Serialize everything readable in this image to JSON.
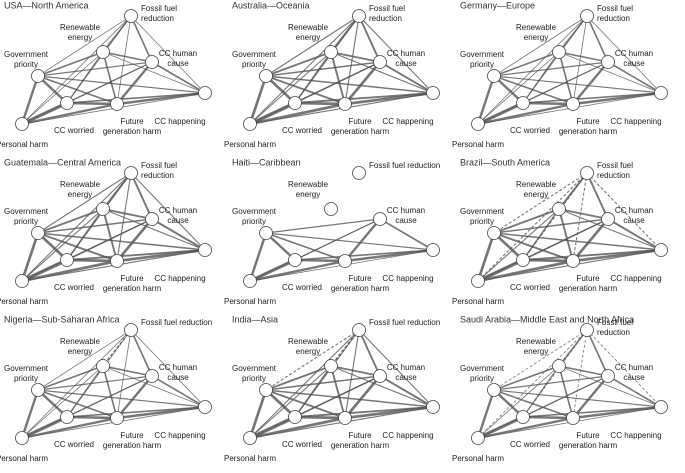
{
  "panels": [
    {
      "title": "USA—North America",
      "labels": [
        [
          "Fossil fuel",
          "reduction"
        ],
        [
          "Renewable",
          "energy"
        ],
        [
          "Government",
          "priority"
        ],
        [
          "CC human",
          "cause"
        ],
        [
          "CC worried"
        ],
        [
          "Future",
          "generation harm"
        ],
        [
          "CC happening"
        ],
        [
          "Personal harm"
        ]
      ]
    },
    {
      "title": "Australia—Oceania",
      "labels": [
        [
          "Fossil fuel",
          "reduction"
        ],
        [
          "Renewable",
          "energy"
        ],
        [
          "Government",
          "priority"
        ],
        [
          "CC human",
          "cause"
        ],
        [
          "CC worried"
        ],
        [
          "Future",
          "generation harm"
        ],
        [
          "CC happening"
        ],
        [
          "Personal harm"
        ]
      ]
    },
    {
      "title": "Germany—Europe",
      "labels": [
        [
          "Fossil fuel",
          "reduction"
        ],
        [
          "Renewable",
          "energy"
        ],
        [
          "Government",
          "priority"
        ],
        [
          "CC human",
          "cause"
        ],
        [
          "CC worried"
        ],
        [
          "Future",
          "generation harm"
        ],
        [
          "CC happening"
        ],
        [
          "Personal harm"
        ]
      ]
    },
    {
      "title": "Guatemala—Central America",
      "labels": [
        [
          "Fossil fuel",
          "reduction"
        ],
        [
          "Renewable",
          "energy"
        ],
        [
          "Government",
          "priority"
        ],
        [
          "CC human",
          "cause"
        ],
        [
          "CC worried"
        ],
        [
          "Future",
          "generation harm"
        ],
        [
          "CC happening"
        ],
        [
          "Personal harm"
        ]
      ]
    },
    {
      "title": "Haiti—Caribbean",
      "labels": [
        [
          "Fossil fuel reduction"
        ],
        [
          "Renewable",
          "energy"
        ],
        [
          "Government",
          "priority"
        ],
        [
          "CC human",
          "cause"
        ],
        [
          "CC worried"
        ],
        [
          "Future",
          "generation harm"
        ],
        [
          "CC happening"
        ],
        [
          "Personal harm"
        ]
      ]
    },
    {
      "title": "Brazil—South America",
      "labels": [
        [
          "Fossil fuel",
          "reduction"
        ],
        [
          "Renewable",
          "energy"
        ],
        [
          "Government",
          "priority"
        ],
        [
          "CC human",
          "cause"
        ],
        [
          "CC worried"
        ],
        [
          "Future",
          "generation harm"
        ],
        [
          "CC happening"
        ],
        [
          "Personal harm"
        ]
      ]
    },
    {
      "title": "Nigeria—Sub-Saharan Africa",
      "labels": [
        [
          "Fossil fuel reduction"
        ],
        [
          "Renewable",
          "energy"
        ],
        [
          "Government",
          "priority"
        ],
        [
          "CC human",
          "cause"
        ],
        [
          "CC worried"
        ],
        [
          "Future",
          "generation harm"
        ],
        [
          "CC happening"
        ],
        [
          "Personal harm"
        ]
      ]
    },
    {
      "title": "India—Asia",
      "labels": [
        [
          "Fossil fuel reduction"
        ],
        [
          "Renewable",
          "energy"
        ],
        [
          "Government",
          "priority"
        ],
        [
          "CC human",
          "cause"
        ],
        [
          "CC worried"
        ],
        [
          "Future",
          "generation harm"
        ],
        [
          "CC happening"
        ],
        [
          "Personal harm"
        ]
      ]
    },
    {
      "title": "Saudi Arabia—Middle East and North Africa",
      "labels": [
        [
          "Fossil fuel",
          "reduction"
        ],
        [
          "Renewable",
          "energy"
        ],
        [
          "Government",
          "priority"
        ],
        [
          "CC human",
          "cause"
        ],
        [
          "CC worried"
        ],
        [
          "Future",
          "generation harm"
        ],
        [
          "CC happening"
        ],
        [
          "Personal harm"
        ]
      ]
    }
  ]
}
